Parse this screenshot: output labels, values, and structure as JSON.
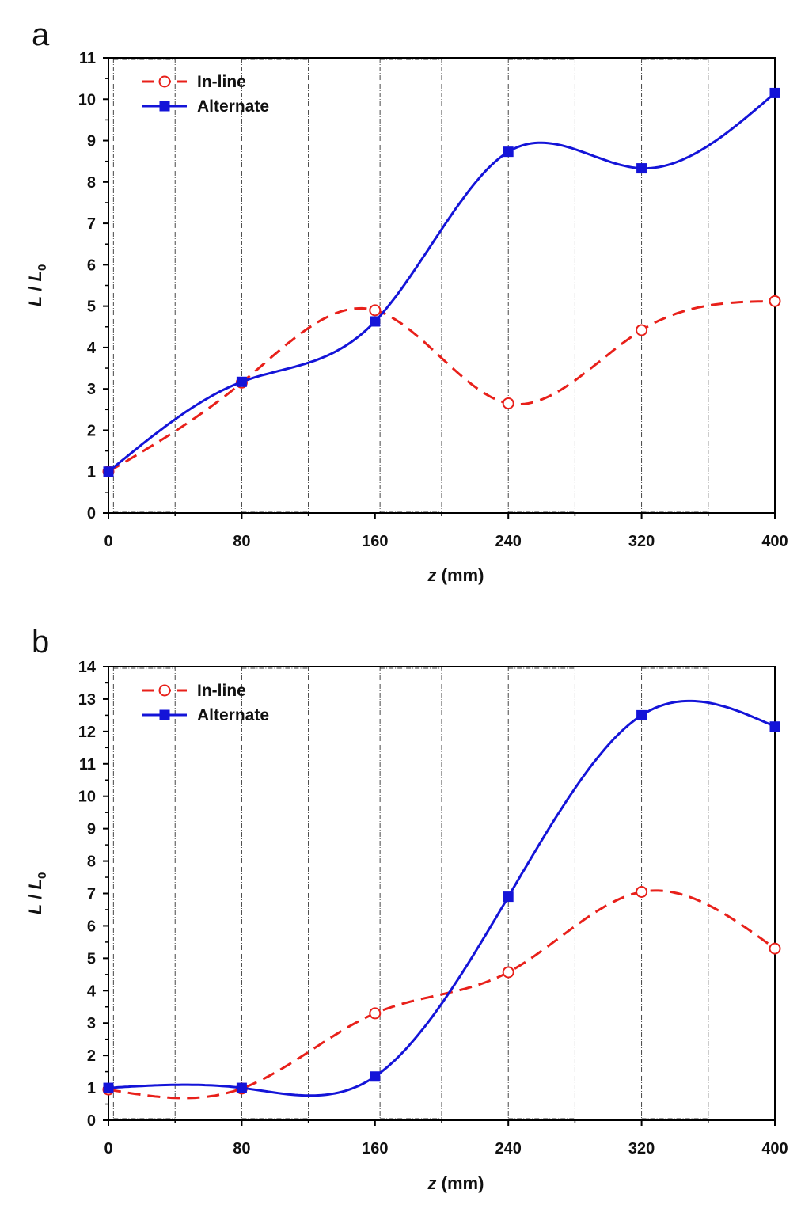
{
  "chart_data": [
    {
      "type": "line",
      "panel_label": "a",
      "xlabel_italic": "z",
      "xlabel_unit": " (mm)",
      "ylabel_parts": [
        "L",
        " / ",
        "L",
        "0"
      ],
      "xticks": [
        0,
        80,
        160,
        240,
        320,
        400
      ],
      "yticks": [
        0,
        1,
        2,
        3,
        4,
        5,
        6,
        7,
        8,
        9,
        10,
        11
      ],
      "xlim": [
        0,
        400
      ],
      "ylim": [
        0,
        11
      ],
      "legend_position": "top-left",
      "shaded_regions": [
        [
          3,
          40
        ],
        [
          80,
          120
        ],
        [
          163,
          200
        ],
        [
          240,
          280
        ],
        [
          320,
          360
        ]
      ],
      "series": [
        {
          "name": "In-line",
          "style": "dashed",
          "marker": "open-circle",
          "color": "#e8201a",
          "x": [
            0,
            80,
            160,
            240,
            320,
            400
          ],
          "y": [
            1.0,
            3.15,
            4.9,
            2.65,
            4.42,
            5.12
          ]
        },
        {
          "name": "Alternate",
          "style": "solid",
          "marker": "filled-square",
          "color": "#1414d8",
          "x": [
            0,
            80,
            160,
            240,
            320,
            400
          ],
          "y": [
            1.0,
            3.17,
            4.63,
            8.73,
            8.33,
            10.15
          ]
        }
      ]
    },
    {
      "type": "line",
      "panel_label": "b",
      "xlabel_italic": "z",
      "xlabel_unit": " (mm)",
      "ylabel_parts": [
        "L",
        " / ",
        "L",
        "0"
      ],
      "xticks": [
        0,
        80,
        160,
        240,
        320,
        400
      ],
      "yticks": [
        0,
        1,
        2,
        3,
        4,
        5,
        6,
        7,
        8,
        9,
        10,
        11,
        12,
        13,
        14
      ],
      "xlim": [
        0,
        400
      ],
      "ylim": [
        0,
        14
      ],
      "legend_position": "top-left",
      "shaded_regions": [
        [
          3,
          40
        ],
        [
          80,
          120
        ],
        [
          163,
          200
        ],
        [
          240,
          280
        ],
        [
          320,
          360
        ]
      ],
      "series": [
        {
          "name": "In-line",
          "style": "dashed",
          "marker": "open-circle",
          "color": "#e8201a",
          "x": [
            0,
            80,
            160,
            240,
            320,
            400
          ],
          "y": [
            0.95,
            0.98,
            3.3,
            4.57,
            7.05,
            5.3
          ]
        },
        {
          "name": "Alternate",
          "style": "solid",
          "marker": "filled-square",
          "color": "#1414d8",
          "x": [
            0,
            80,
            160,
            240,
            320,
            400
          ],
          "y": [
            1.0,
            1.0,
            1.35,
            6.9,
            12.5,
            12.15
          ]
        }
      ]
    }
  ]
}
